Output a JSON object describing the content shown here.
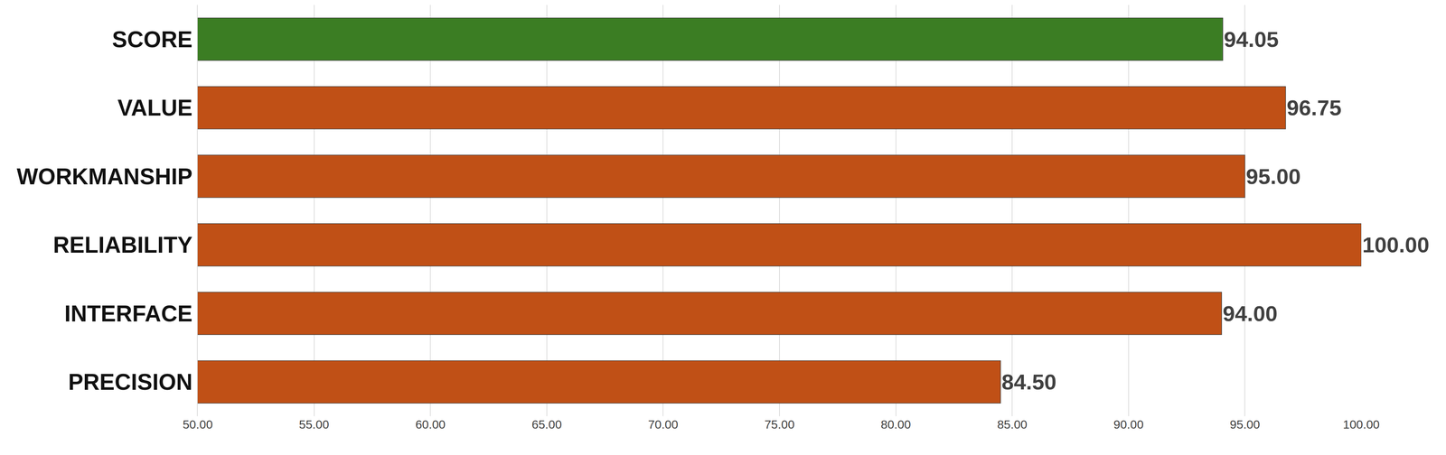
{
  "chart_data": {
    "type": "bar",
    "orientation": "horizontal",
    "categories": [
      "SCORE",
      "VALUE",
      "WORKMANSHIP",
      "RELIABILITY",
      "INTERFACE",
      "PRECISION"
    ],
    "values": [
      94.05,
      96.75,
      95.0,
      100.0,
      94.0,
      84.5
    ],
    "value_labels": [
      "94.05",
      "96.75",
      "95.00",
      "100.00",
      "94.00",
      "84.50"
    ],
    "colors": [
      "#3b7d23",
      "#c05016",
      "#c05016",
      "#c05016",
      "#c05016",
      "#c05016"
    ],
    "xlim": [
      50,
      100
    ],
    "xticks": [
      {
        "value": 50,
        "label": "50.00"
      },
      {
        "value": 55,
        "label": "55.00"
      },
      {
        "value": 60,
        "label": "60.00"
      },
      {
        "value": 65,
        "label": "65.00"
      },
      {
        "value": 70,
        "label": "70.00"
      },
      {
        "value": 75,
        "label": "75.00"
      },
      {
        "value": 80,
        "label": "80.00"
      },
      {
        "value": 85,
        "label": "85.00"
      },
      {
        "value": 90,
        "label": "90.00"
      },
      {
        "value": 95,
        "label": "95.00"
      },
      {
        "value": 100,
        "label": "100.00"
      }
    ],
    "grid": true,
    "data_labels": true
  }
}
